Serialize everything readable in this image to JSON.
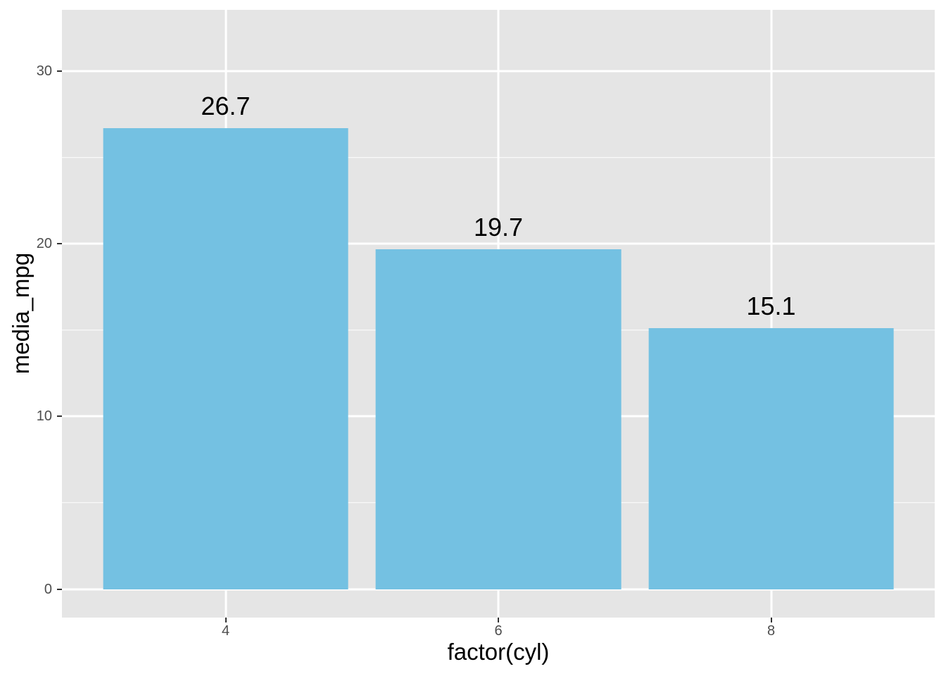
{
  "chart_data": {
    "type": "bar",
    "title": "",
    "xlabel": "factor(cyl)",
    "ylabel": "media_mpg",
    "categories": [
      "4",
      "6",
      "8"
    ],
    "values": [
      26.7,
      19.7,
      15.1
    ],
    "bar_labels": [
      "26.7",
      "19.7",
      "15.1"
    ],
    "y_major_ticks": [
      0,
      10,
      20,
      30
    ],
    "y_tick_labels": [
      "0",
      "10",
      "20",
      "30"
    ],
    "y_minor_ticks": [
      5,
      15,
      25
    ],
    "ylim": [
      -1.65,
      33.55
    ],
    "x_range": [
      0.4,
      3.6
    ],
    "bar_width_fraction": 0.9,
    "grid": true,
    "legend": "none",
    "colors": {
      "bar_fill": "#74C1E2",
      "panel_background": "#E5E5E5",
      "grid_major": "#FFFFFF",
      "grid_minor": "#FFFFFF",
      "tick_label": "#4D4D4D",
      "tick_mark": "#333333",
      "axis_title": "#000000",
      "bar_label": "#000000",
      "figure_background": "#FFFFFF"
    }
  }
}
